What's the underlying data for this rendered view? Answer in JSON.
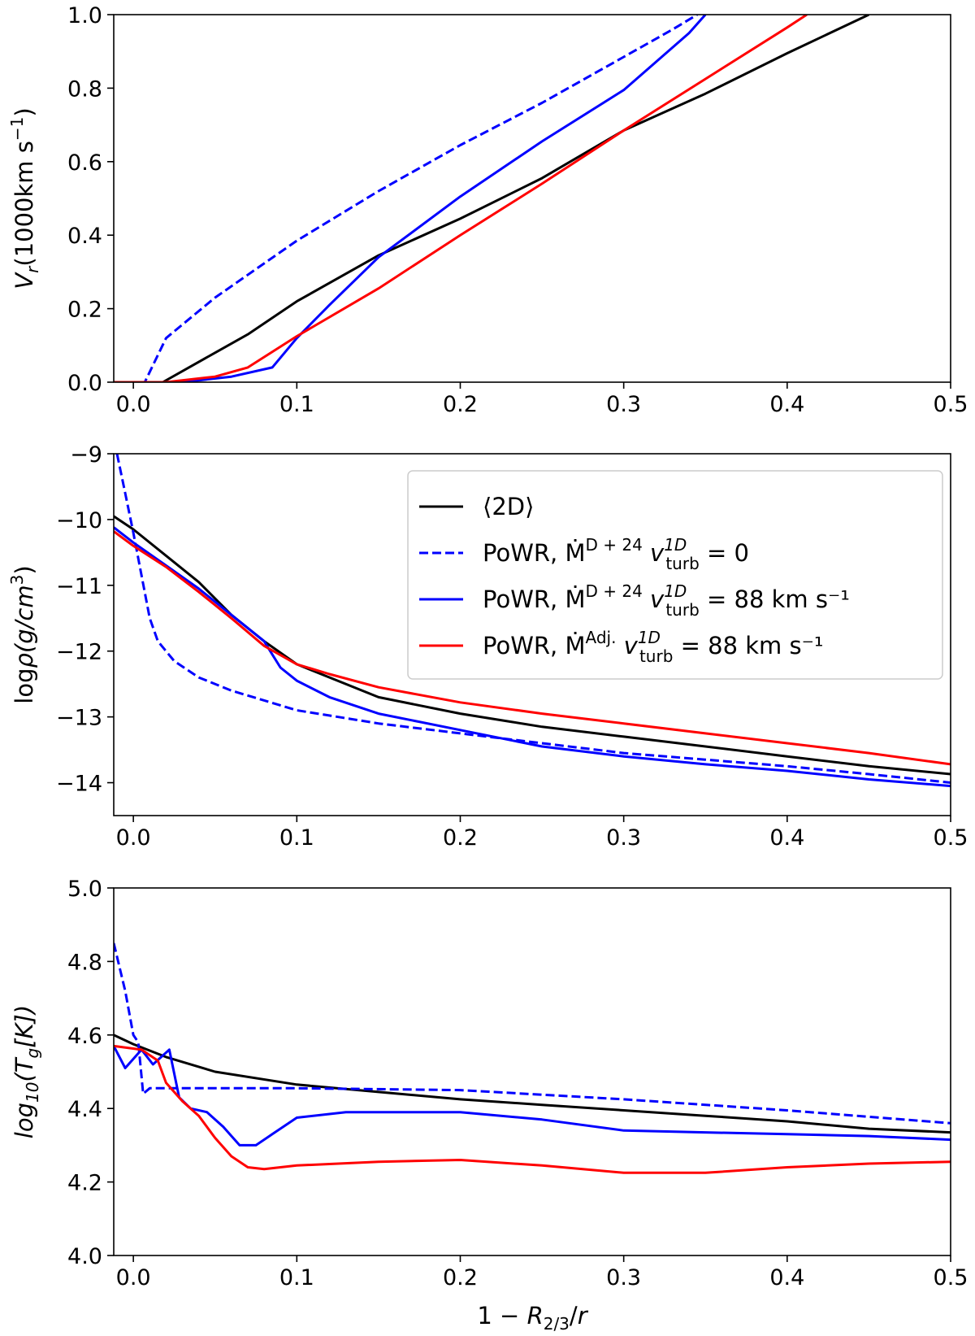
{
  "chart_data": [
    {
      "type": "line",
      "title": "",
      "xlabel": "",
      "ylabel": "V_r(1000km s^-1)",
      "xlim": [
        -0.012,
        0.5
      ],
      "ylim": [
        0.0,
        1.0
      ],
      "xticks": [
        0.0,
        0.1,
        0.2,
        0.3,
        0.4,
        0.5
      ],
      "xtick_labels": [
        "0.0",
        "0.1",
        "0.2",
        "0.3",
        "0.4",
        "0.5"
      ],
      "yticks": [
        0.0,
        0.2,
        0.4,
        0.6,
        0.8,
        1.0
      ],
      "ytick_labels": [
        "0.0",
        "0.2",
        "0.4",
        "0.6",
        "0.8",
        "1.0"
      ],
      "grid": false,
      "series": [
        {
          "color": "#000000",
          "dash": "solid",
          "points": [
            [
              -0.012,
              0.0
            ],
            [
              0.018,
              0.0
            ],
            [
              0.03,
              0.03
            ],
            [
              0.05,
              0.08
            ],
            [
              0.07,
              0.13
            ],
            [
              0.1,
              0.22
            ],
            [
              0.15,
              0.345
            ],
            [
              0.2,
              0.445
            ],
            [
              0.25,
              0.555
            ],
            [
              0.3,
              0.685
            ],
            [
              0.35,
              0.785
            ],
            [
              0.4,
              0.895
            ],
            [
              0.45,
              1.0
            ]
          ]
        },
        {
          "color": "#0000ff",
          "dash": "dashed",
          "points": [
            [
              -0.012,
              0.0
            ],
            [
              0.007,
              0.0
            ],
            [
              0.02,
              0.12
            ],
            [
              0.05,
              0.23
            ],
            [
              0.1,
              0.385
            ],
            [
              0.15,
              0.52
            ],
            [
              0.2,
              0.645
            ],
            [
              0.25,
              0.76
            ],
            [
              0.3,
              0.885
            ],
            [
              0.33,
              0.96
            ],
            [
              0.345,
              1.0
            ]
          ]
        },
        {
          "color": "#0000ff",
          "dash": "solid",
          "points": [
            [
              -0.012,
              0.0
            ],
            [
              0.03,
              0.0
            ],
            [
              0.06,
              0.015
            ],
            [
              0.085,
              0.04
            ],
            [
              0.1,
              0.12
            ],
            [
              0.12,
              0.21
            ],
            [
              0.15,
              0.34
            ],
            [
              0.2,
              0.505
            ],
            [
              0.25,
              0.655
            ],
            [
              0.3,
              0.795
            ],
            [
              0.34,
              0.95
            ],
            [
              0.35,
              1.0
            ]
          ]
        },
        {
          "color": "#ff0000",
          "dash": "solid",
          "points": [
            [
              -0.012,
              0.0
            ],
            [
              0.02,
              0.0
            ],
            [
              0.05,
              0.015
            ],
            [
              0.07,
              0.04
            ],
            [
              0.1,
              0.125
            ],
            [
              0.15,
              0.255
            ],
            [
              0.2,
              0.4
            ],
            [
              0.25,
              0.54
            ],
            [
              0.3,
              0.685
            ],
            [
              0.35,
              0.825
            ],
            [
              0.4,
              0.965
            ],
            [
              0.412,
              1.0
            ]
          ]
        }
      ]
    },
    {
      "type": "line",
      "title": "",
      "xlabel": "",
      "ylabel": "logρ(g/cm^3)",
      "xlim": [
        -0.012,
        0.5
      ],
      "ylim": [
        -14.5,
        -9.0
      ],
      "xticks": [
        0.0,
        0.1,
        0.2,
        0.3,
        0.4,
        0.5
      ],
      "xtick_labels": [
        "0.0",
        "0.1",
        "0.2",
        "0.3",
        "0.4",
        "0.5"
      ],
      "yticks": [
        -14,
        -13,
        -12,
        -11,
        -10,
        -9
      ],
      "ytick_labels": [
        "−14",
        "−13",
        "−12",
        "−11",
        "−10",
        "−9"
      ],
      "grid": false,
      "legend_position": "top-right",
      "legend": [
        {
          "label_main": "⟨2D⟩",
          "label_sup": "",
          "label_mid": "",
          "label_sup2": "",
          "label_sub": "",
          "label_end": "",
          "color": "#000000",
          "dash": "solid"
        },
        {
          "label_main": "PoWR, Ṁ",
          "label_sup": "D + 24",
          "label_mid": " v",
          "label_sup2": "1D",
          "label_sub": "turb",
          "label_end": " = 0",
          "color": "#0000ff",
          "dash": "dashed"
        },
        {
          "label_main": "PoWR, Ṁ",
          "label_sup": "D + 24",
          "label_mid": " v",
          "label_sup2": "1D",
          "label_sub": "turb",
          "label_end": " = 88 km s⁻¹",
          "color": "#0000ff",
          "dash": "solid"
        },
        {
          "label_main": "PoWR, Ṁ",
          "label_sup": "Adj.",
          "label_mid": " v",
          "label_sup2": "1D",
          "label_sub": "turb",
          "label_end": " = 88 km s⁻¹",
          "color": "#ff0000",
          "dash": "solid"
        }
      ],
      "series": [
        {
          "color": "#000000",
          "dash": "solid",
          "points": [
            [
              -0.012,
              -9.95
            ],
            [
              0.0,
              -10.15
            ],
            [
              0.02,
              -10.55
            ],
            [
              0.04,
              -10.95
            ],
            [
              0.06,
              -11.45
            ],
            [
              0.08,
              -11.85
            ],
            [
              0.1,
              -12.2
            ],
            [
              0.15,
              -12.7
            ],
            [
              0.2,
              -12.95
            ],
            [
              0.25,
              -13.15
            ],
            [
              0.3,
              -13.3
            ],
            [
              0.35,
              -13.45
            ],
            [
              0.4,
              -13.6
            ],
            [
              0.45,
              -13.75
            ],
            [
              0.5,
              -13.87
            ]
          ]
        },
        {
          "color": "#0000ff",
          "dash": "dashed",
          "points": [
            [
              -0.01,
              -9.0
            ],
            [
              -0.005,
              -9.6
            ],
            [
              0.0,
              -10.2
            ],
            [
              0.005,
              -10.85
            ],
            [
              0.01,
              -11.5
            ],
            [
              0.015,
              -11.85
            ],
            [
              0.025,
              -12.15
            ],
            [
              0.04,
              -12.4
            ],
            [
              0.06,
              -12.6
            ],
            [
              0.1,
              -12.9
            ],
            [
              0.15,
              -13.1
            ],
            [
              0.2,
              -13.25
            ],
            [
              0.25,
              -13.4
            ],
            [
              0.3,
              -13.55
            ],
            [
              0.35,
              -13.65
            ],
            [
              0.4,
              -13.75
            ],
            [
              0.45,
              -13.87
            ],
            [
              0.5,
              -14.0
            ]
          ]
        },
        {
          "color": "#0000ff",
          "dash": "solid",
          "points": [
            [
              -0.012,
              -10.12
            ],
            [
              0.0,
              -10.35
            ],
            [
              0.02,
              -10.7
            ],
            [
              0.04,
              -11.05
            ],
            [
              0.06,
              -11.45
            ],
            [
              0.08,
              -11.85
            ],
            [
              0.085,
              -12.05
            ],
            [
              0.09,
              -12.25
            ],
            [
              0.1,
              -12.45
            ],
            [
              0.12,
              -12.7
            ],
            [
              0.15,
              -12.95
            ],
            [
              0.2,
              -13.2
            ],
            [
              0.25,
              -13.45
            ],
            [
              0.3,
              -13.6
            ],
            [
              0.35,
              -13.72
            ],
            [
              0.4,
              -13.82
            ],
            [
              0.45,
              -13.95
            ],
            [
              0.5,
              -14.05
            ]
          ]
        },
        {
          "color": "#ff0000",
          "dash": "solid",
          "points": [
            [
              -0.012,
              -10.18
            ],
            [
              0.0,
              -10.4
            ],
            [
              0.02,
              -10.72
            ],
            [
              0.04,
              -11.1
            ],
            [
              0.06,
              -11.5
            ],
            [
              0.08,
              -11.92
            ],
            [
              0.1,
              -12.2
            ],
            [
              0.12,
              -12.35
            ],
            [
              0.15,
              -12.55
            ],
            [
              0.2,
              -12.78
            ],
            [
              0.25,
              -12.95
            ],
            [
              0.3,
              -13.1
            ],
            [
              0.35,
              -13.25
            ],
            [
              0.4,
              -13.4
            ],
            [
              0.45,
              -13.55
            ],
            [
              0.5,
              -13.72
            ]
          ]
        }
      ]
    },
    {
      "type": "line",
      "title": "",
      "xlabel": "1 − R_2/3/r",
      "ylabel": "log10(T_g[K])",
      "xlim": [
        -0.012,
        0.5
      ],
      "ylim": [
        4.0,
        5.0
      ],
      "xticks": [
        0.0,
        0.1,
        0.2,
        0.3,
        0.4,
        0.5
      ],
      "xtick_labels": [
        "0.0",
        "0.1",
        "0.2",
        "0.3",
        "0.4",
        "0.5"
      ],
      "yticks": [
        4.0,
        4.2,
        4.4,
        4.6,
        4.8,
        5.0
      ],
      "ytick_labels": [
        "4.0",
        "4.2",
        "4.4",
        "4.6",
        "4.8",
        "5.0"
      ],
      "grid": false,
      "series": [
        {
          "color": "#000000",
          "dash": "solid",
          "points": [
            [
              -0.012,
              4.6
            ],
            [
              0.0,
              4.575
            ],
            [
              0.02,
              4.54
            ],
            [
              0.05,
              4.5
            ],
            [
              0.1,
              4.465
            ],
            [
              0.15,
              4.445
            ],
            [
              0.2,
              4.425
            ],
            [
              0.25,
              4.41
            ],
            [
              0.3,
              4.395
            ],
            [
              0.35,
              4.38
            ],
            [
              0.4,
              4.365
            ],
            [
              0.45,
              4.345
            ],
            [
              0.5,
              4.335
            ]
          ]
        },
        {
          "color": "#0000ff",
          "dash": "dashed",
          "points": [
            [
              -0.012,
              4.85
            ],
            [
              -0.005,
              4.72
            ],
            [
              0.0,
              4.6
            ],
            [
              0.003,
              4.58
            ],
            [
              0.006,
              4.44
            ],
            [
              0.01,
              4.455
            ],
            [
              0.05,
              4.455
            ],
            [
              0.1,
              4.455
            ],
            [
              0.2,
              4.45
            ],
            [
              0.3,
              4.425
            ],
            [
              0.4,
              4.395
            ],
            [
              0.5,
              4.36
            ]
          ]
        },
        {
          "color": "#0000ff",
          "dash": "solid",
          "points": [
            [
              -0.012,
              4.57
            ],
            [
              -0.005,
              4.51
            ],
            [
              0.005,
              4.56
            ],
            [
              0.012,
              4.52
            ],
            [
              0.022,
              4.56
            ],
            [
              0.028,
              4.43
            ],
            [
              0.035,
              4.4
            ],
            [
              0.045,
              4.39
            ],
            [
              0.055,
              4.35
            ],
            [
              0.065,
              4.3
            ],
            [
              0.075,
              4.3
            ],
            [
              0.085,
              4.33
            ],
            [
              0.1,
              4.375
            ],
            [
              0.13,
              4.39
            ],
            [
              0.2,
              4.39
            ],
            [
              0.25,
              4.37
            ],
            [
              0.3,
              4.34
            ],
            [
              0.35,
              4.335
            ],
            [
              0.4,
              4.33
            ],
            [
              0.45,
              4.325
            ],
            [
              0.5,
              4.315
            ]
          ]
        },
        {
          "color": "#ff0000",
          "dash": "solid",
          "points": [
            [
              -0.012,
              4.57
            ],
            [
              0.005,
              4.56
            ],
            [
              0.015,
              4.53
            ],
            [
              0.02,
              4.47
            ],
            [
              0.03,
              4.42
            ],
            [
              0.04,
              4.38
            ],
            [
              0.05,
              4.32
            ],
            [
              0.06,
              4.27
            ],
            [
              0.07,
              4.24
            ],
            [
              0.08,
              4.235
            ],
            [
              0.1,
              4.245
            ],
            [
              0.15,
              4.255
            ],
            [
              0.2,
              4.26
            ],
            [
              0.25,
              4.245
            ],
            [
              0.3,
              4.225
            ],
            [
              0.35,
              4.225
            ],
            [
              0.4,
              4.24
            ],
            [
              0.45,
              4.25
            ],
            [
              0.5,
              4.255
            ]
          ]
        }
      ]
    }
  ]
}
